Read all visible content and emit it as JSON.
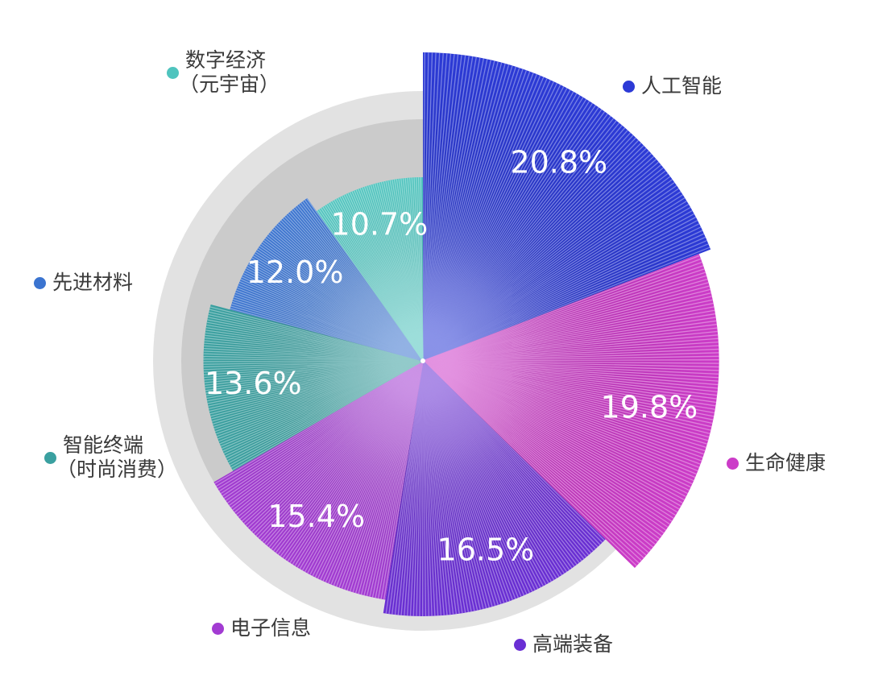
{
  "chart_data": {
    "type": "pie",
    "style": "rose",
    "title": "",
    "slices": [
      {
        "label": "人工智能",
        "value": 20.8,
        "display": "20.8%",
        "color": "#2c3ad6"
      },
      {
        "label": "生命健康",
        "value": 19.8,
        "display": "19.8%",
        "color": "#cc3cc8"
      },
      {
        "label": "高端装备",
        "value": 16.5,
        "display": "16.5%",
        "color": "#6a2fd4"
      },
      {
        "label": "电子信息",
        "value": 15.4,
        "display": "15.4%",
        "color": "#a23bd2"
      },
      {
        "label": "智能终端（时尚消费）",
        "value": 13.6,
        "display": "13.6%",
        "color": "#3aa0a0"
      },
      {
        "label": "先进材料",
        "value": 12.0,
        "display": "12.0%",
        "color": "#3b74d0"
      },
      {
        "label": "数字经济（元宇宙）",
        "value": 10.7,
        "display": "10.7%",
        "color": "#4fc4be"
      }
    ],
    "legend": {
      "placement": "around",
      "items": [
        {
          "line1": "人工智能",
          "line2": ""
        },
        {
          "line1": "生命健康",
          "line2": ""
        },
        {
          "line1": "高端装备",
          "line2": ""
        },
        {
          "line1": "电子信息",
          "line2": ""
        },
        {
          "line1": "智能终端",
          "line2": "（时尚消费）"
        },
        {
          "line1": "先进材料",
          "line2": ""
        },
        {
          "line1": "数字经济",
          "line2": "（元宇宙）"
        }
      ]
    },
    "background_color": "#cbcbcb",
    "ring_color": "#e2e2e2"
  }
}
